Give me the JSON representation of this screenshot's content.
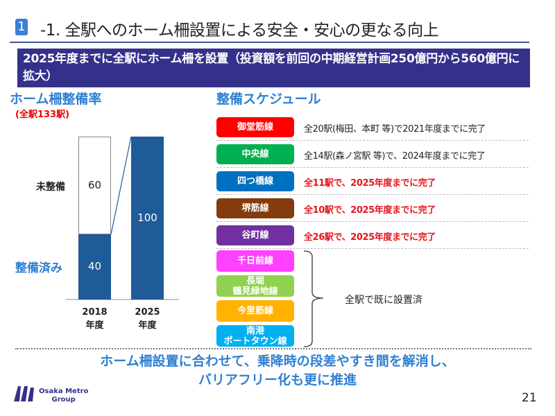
{
  "header": {
    "section_number": "1",
    "title": "-1. 全駅へのホーム柵設置による安全・安心の更なる向上"
  },
  "banner": "2025年度までに全駅にホーム柵を設置（投資額を前回の中期経営計画250億円から560億円に拡大）",
  "left": {
    "heading": "ホーム柵整備率",
    "subheading": "(全駅133駅)",
    "label_unfinished": "未整備",
    "label_finished": "整備済み"
  },
  "chart_data": {
    "type": "bar",
    "stacked": true,
    "categories": [
      "2018\n年度",
      "2025\n年度"
    ],
    "category_lines": [
      [
        "2018",
        "年度"
      ],
      [
        "2025",
        "年度"
      ]
    ],
    "series": [
      {
        "name": "整備済み",
        "values": [
          40,
          100
        ],
        "color": "#1f5a99"
      },
      {
        "name": "未整備",
        "values": [
          60,
          0
        ],
        "color": "#ffffff"
      }
    ],
    "ylim": [
      0,
      100
    ],
    "data_labels": [
      "40",
      "60",
      "100"
    ]
  },
  "right": {
    "heading": "整備スケジュール",
    "rows": [
      {
        "line": "御堂筋線",
        "color": "#ff0000",
        "text": "全20駅(梅田、本町 等)で2021年度までに完了",
        "highlight": false
      },
      {
        "line": "中央線",
        "color": "#00b050",
        "text": "全14駅(森ノ宮駅 等)で、2024年度までに完了",
        "highlight": false
      },
      {
        "line": "四つ橋線",
        "color": "#0070c0",
        "text": "全11駅で、2025年度までに完了",
        "highlight": true
      },
      {
        "line": "堺筋線",
        "color": "#843c0c",
        "text": "全10駅で、2025年度までに完了",
        "highlight": true
      },
      {
        "line": "谷町線",
        "color": "#7030a0",
        "text": "全26駅で、2025年度までに完了",
        "highlight": true
      }
    ],
    "done_lines": [
      {
        "line": "千日前線",
        "color": "#ff40ff"
      },
      {
        "line": "長堀\n鶴見緑地線",
        "color": "#92d050"
      },
      {
        "line": "今里筋線",
        "color": "#ffb300"
      },
      {
        "line": "南港\nポートタウン線",
        "color": "#00b0f0"
      }
    ],
    "done_text": "全駅で既に設置済"
  },
  "footer": {
    "line1": "ホーム柵設置に合わせて、乗降時の段差やすき間を解消し、",
    "line2": "バリアフリー化も更に推進"
  },
  "logo": {
    "line1": "Osaka Metro",
    "line2": "Group"
  },
  "page_number": "21"
}
